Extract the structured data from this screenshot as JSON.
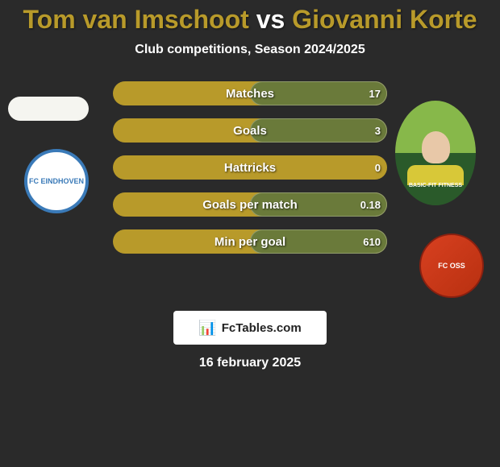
{
  "title": {
    "player1": "Tom van Imschoot",
    "vs": "vs",
    "player2": "Giovanni Korte",
    "player1_color": "#b89a2a",
    "vs_color": "#ffffff",
    "player2_color": "#b89a2a"
  },
  "subtitle": "Club competitions, Season 2024/2025",
  "chart": {
    "bar_bg_color": "#b89a2a",
    "bar_fill_left_color": "#6a7a3a",
    "bar_fill_right_color": "#6a7a3a",
    "rows": [
      {
        "label": "Matches",
        "left_value": "",
        "right_value": "17",
        "left_width": 0,
        "right_width": 50
      },
      {
        "label": "Goals",
        "left_value": "",
        "right_value": "3",
        "left_width": 0,
        "right_width": 50
      },
      {
        "label": "Hattricks",
        "left_value": "",
        "right_value": "0",
        "left_width": 0,
        "right_width": 0
      },
      {
        "label": "Goals per match",
        "left_value": "",
        "right_value": "0.18",
        "left_width": 0,
        "right_width": 50
      },
      {
        "label": "Min per goal",
        "left_value": "",
        "right_value": "610",
        "left_width": 0,
        "right_width": 50
      }
    ]
  },
  "left_club": "FC EINDHOVEN",
  "right_club": "FC OSS",
  "jersey_text": "BASIC-FIT FITNESS",
  "footer_brand": "FcTables.com",
  "date": "16 february 2025",
  "colors": {
    "background": "#2a2a2a",
    "text": "#ffffff"
  }
}
